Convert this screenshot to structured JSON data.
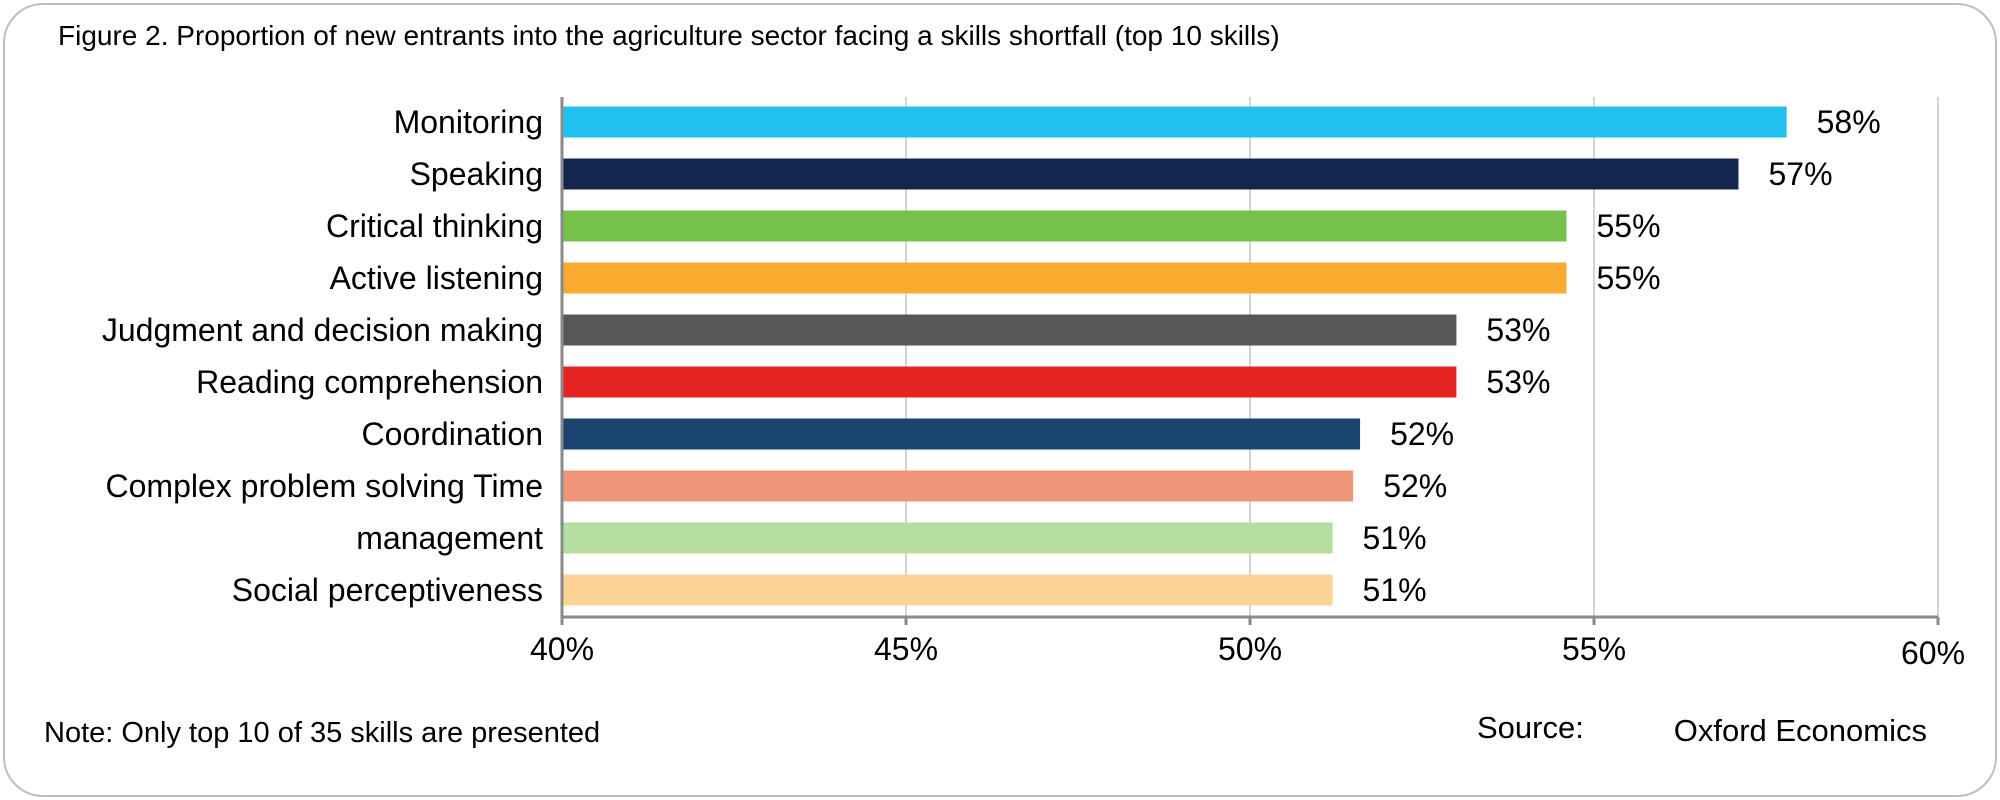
{
  "title": "Figure 2. Proportion of new entrants into the agriculture sector facing a skills shortfall (top 10 skills)",
  "note": "Note: Only top 10 of 35 skills are presented",
  "source": {
    "label": "Source:",
    "value": "Oxford Economics"
  },
  "chart_data": {
    "type": "bar",
    "orientation": "horizontal",
    "categories": [
      "Monitoring",
      "Speaking",
      "Critical thinking",
      "Active listening",
      "Judgment and decision making",
      "Reading comprehension",
      "Coordination",
      "Complex problem solving Time",
      "management",
      "Social perceptiveness"
    ],
    "values": [
      57.8,
      57.1,
      54.6,
      54.6,
      53.0,
      53.0,
      51.6,
      51.5,
      51.2,
      51.2
    ],
    "data_labels": [
      "58%",
      "57%",
      "55%",
      "55%",
      "53%",
      "53%",
      "52%",
      "52%",
      "51%",
      "51%"
    ],
    "colors": [
      "#22c0ef",
      "#14284f",
      "#76c04c",
      "#f9ab2f",
      "#575757",
      "#e52524",
      "#1a4470",
      "#f0977a",
      "#b7dea1",
      "#fcd395"
    ],
    "xlim": [
      40,
      60
    ],
    "xticks": [
      40,
      45,
      50,
      55,
      60
    ],
    "xtick_labels": [
      "40%",
      "45%",
      "50%",
      "55%",
      "60%"
    ],
    "grid": true
  }
}
